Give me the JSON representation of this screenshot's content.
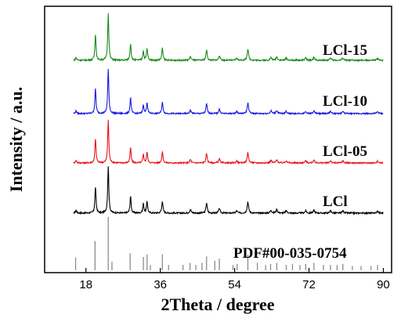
{
  "chart_data": {
    "type": "line",
    "title": "",
    "xlabel": "2Theta / degree",
    "ylabel": "Intensity / a.u.",
    "xlim": [
      8,
      92
    ],
    "xticks": [
      18,
      36,
      54,
      72,
      90
    ],
    "yticks_visible": false,
    "grid": false,
    "legend": "none",
    "reference": {
      "name": "PDF#00-035-0754",
      "peaks": [
        {
          "x": 15.5,
          "h": 0.24
        },
        {
          "x": 20.2,
          "h": 0.55
        },
        {
          "x": 23.4,
          "h": 1.0
        },
        {
          "x": 24.3,
          "h": 0.16
        },
        {
          "x": 28.7,
          "h": 0.32
        },
        {
          "x": 31.9,
          "h": 0.25
        },
        {
          "x": 32.8,
          "h": 0.3
        },
        {
          "x": 33.6,
          "h": 0.1
        },
        {
          "x": 36.5,
          "h": 0.3
        },
        {
          "x": 38.0,
          "h": 0.1
        },
        {
          "x": 41.5,
          "h": 0.1
        },
        {
          "x": 43.2,
          "h": 0.14
        },
        {
          "x": 44.6,
          "h": 0.1
        },
        {
          "x": 46.1,
          "h": 0.14
        },
        {
          "x": 47.2,
          "h": 0.26
        },
        {
          "x": 49.2,
          "h": 0.18
        },
        {
          "x": 50.3,
          "h": 0.22
        },
        {
          "x": 53.6,
          "h": 0.1
        },
        {
          "x": 54.6,
          "h": 0.12
        },
        {
          "x": 57.2,
          "h": 0.3
        },
        {
          "x": 59.5,
          "h": 0.14
        },
        {
          "x": 61.5,
          "h": 0.1
        },
        {
          "x": 62.7,
          "h": 0.12
        },
        {
          "x": 64.2,
          "h": 0.14
        },
        {
          "x": 66.5,
          "h": 0.1
        },
        {
          "x": 68.0,
          "h": 0.12
        },
        {
          "x": 69.8,
          "h": 0.1
        },
        {
          "x": 71.2,
          "h": 0.12
        },
        {
          "x": 73.2,
          "h": 0.14
        },
        {
          "x": 75.5,
          "h": 0.1
        },
        {
          "x": 77.2,
          "h": 0.1
        },
        {
          "x": 78.8,
          "h": 0.1
        },
        {
          "x": 80.2,
          "h": 0.12
        },
        {
          "x": 82.5,
          "h": 0.08
        },
        {
          "x": 84.6,
          "h": 0.08
        },
        {
          "x": 87.0,
          "h": 0.08
        },
        {
          "x": 88.6,
          "h": 0.1
        }
      ]
    },
    "series_peaks": [
      {
        "x": 15.6,
        "h": 0.06,
        "w": 0.18
      },
      {
        "x": 20.3,
        "h": 0.56,
        "w": 0.16
      },
      {
        "x": 23.4,
        "h": 1.0,
        "w": 0.16
      },
      {
        "x": 28.8,
        "h": 0.36,
        "w": 0.16
      },
      {
        "x": 31.9,
        "h": 0.2,
        "w": 0.16
      },
      {
        "x": 32.8,
        "h": 0.25,
        "w": 0.16
      },
      {
        "x": 36.5,
        "h": 0.26,
        "w": 0.17
      },
      {
        "x": 43.3,
        "h": 0.08,
        "w": 0.2
      },
      {
        "x": 47.2,
        "h": 0.22,
        "w": 0.18
      },
      {
        "x": 50.3,
        "h": 0.1,
        "w": 0.2
      },
      {
        "x": 54.5,
        "h": 0.05,
        "w": 0.2
      },
      {
        "x": 57.2,
        "h": 0.24,
        "w": 0.2
      },
      {
        "x": 62.8,
        "h": 0.06,
        "w": 0.22
      },
      {
        "x": 64.2,
        "h": 0.07,
        "w": 0.22
      },
      {
        "x": 66.5,
        "h": 0.05,
        "w": 0.22
      },
      {
        "x": 71.2,
        "h": 0.05,
        "w": 0.22
      },
      {
        "x": 73.2,
        "h": 0.06,
        "w": 0.22
      },
      {
        "x": 77.2,
        "h": 0.05,
        "w": 0.22
      },
      {
        "x": 80.2,
        "h": 0.05,
        "w": 0.22
      },
      {
        "x": 88.6,
        "h": 0.04,
        "w": 0.22
      }
    ],
    "series": [
      {
        "name": "LCl",
        "color": "#000000",
        "x_range": [
          15,
          90
        ]
      },
      {
        "name": "LCl-05",
        "color": "#e8141b",
        "x_range": [
          15,
          90
        ]
      },
      {
        "name": "LCl-10",
        "color": "#1a1adf",
        "x_range": [
          15,
          90
        ]
      },
      {
        "name": "LCl-15",
        "color": "#1a8a1a",
        "x_range": [
          15,
          90
        ]
      }
    ]
  }
}
